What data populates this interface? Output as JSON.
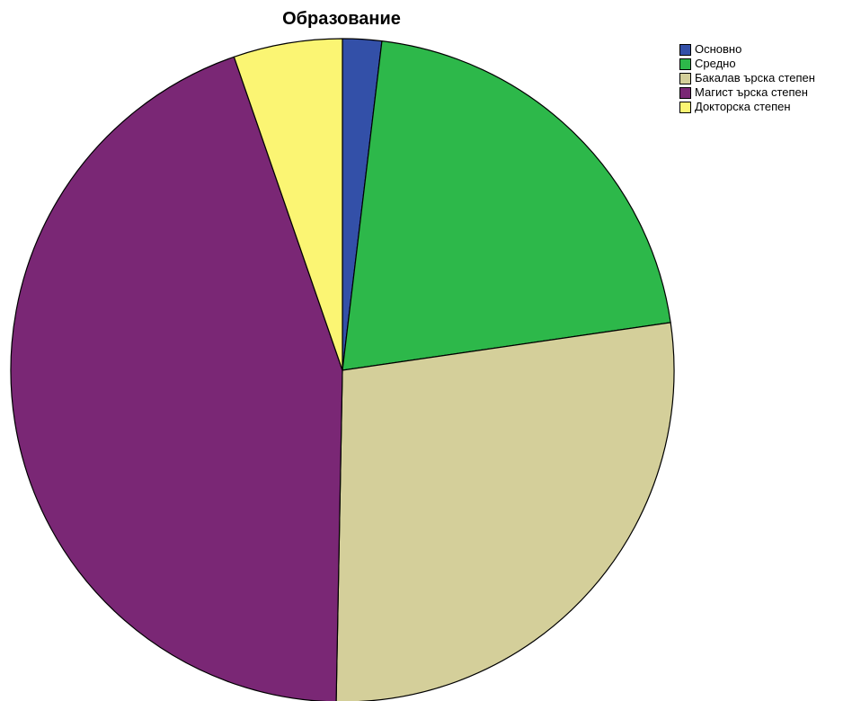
{
  "chart_data": {
    "type": "pie",
    "title": "Образование",
    "categories": [
      "Основно",
      "Средно",
      "Бакалав ърска степен",
      "Магист ърска степен",
      "Докторска степен"
    ],
    "values": [
      1.9,
      20.8,
      27.6,
      44.4,
      5.3
    ],
    "colors": [
      "#3350a8",
      "#2db84a",
      "#d4cf9a",
      "#7a2775",
      "#fbf573"
    ],
    "start_angle": "12 o'clock",
    "direction": "clockwise",
    "legend": "top-right"
  }
}
